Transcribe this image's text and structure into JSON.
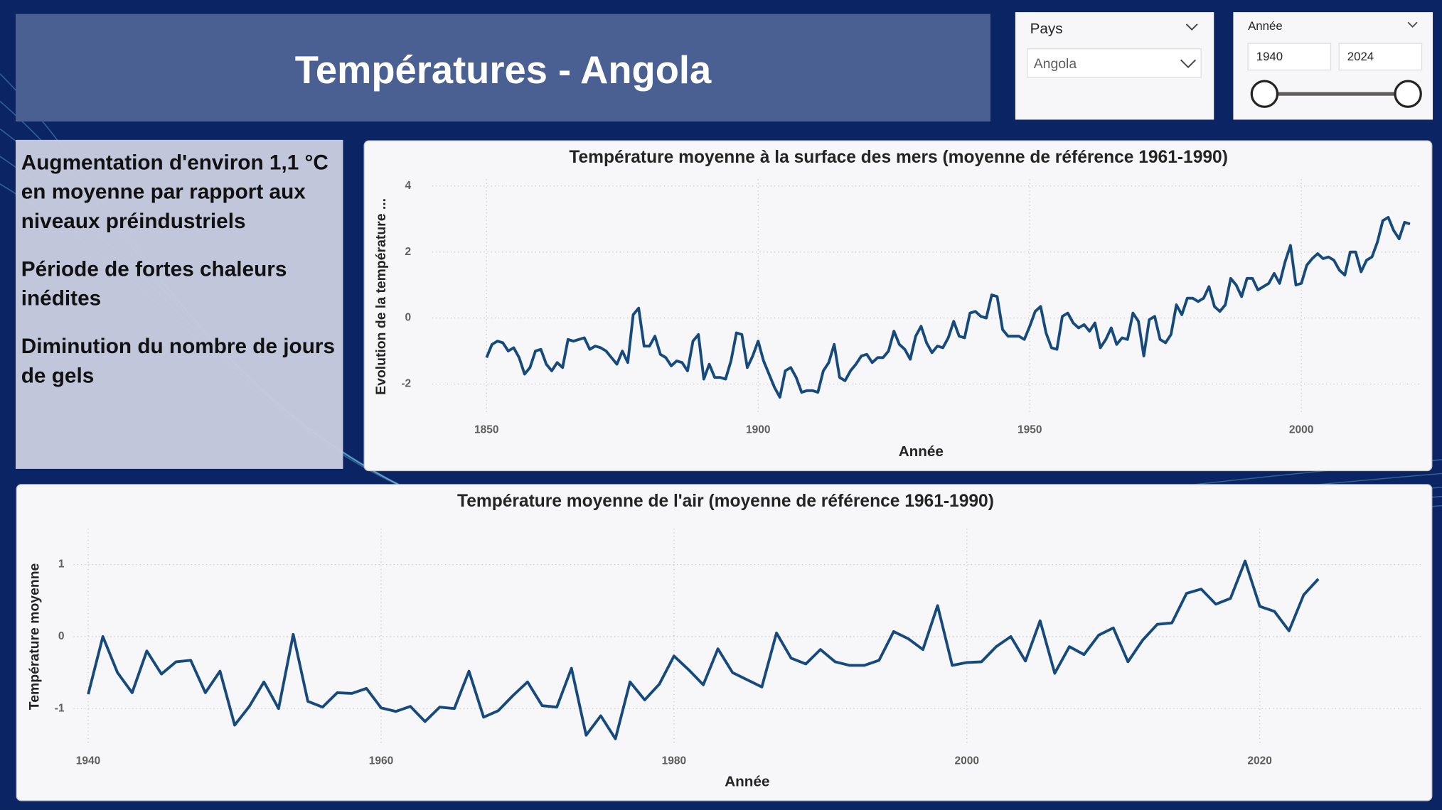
{
  "header": {
    "title": "Températures - Angola"
  },
  "filters": {
    "country": {
      "label": "Pays",
      "value": "Angola"
    },
    "year": {
      "label": "Année",
      "from": "1940",
      "to": "2024"
    }
  },
  "notes": [
    "Augmentation d'environ 1,1 °C en moyenne par rapport aux niveaux préindustriels",
    "Période de fortes chaleurs inédites",
    "Diminution du nombre de jours de gels"
  ],
  "chart_data": [
    {
      "type": "line",
      "title": "Température moyenne à la surface des mers (moyenne de référence 1961-1990)",
      "x_label": "Année",
      "y_label": "Evolution de la température ...",
      "color": "#174a7c",
      "grid": true,
      "xlim": [
        1840,
        2022
      ],
      "xticks": [
        1850,
        1900,
        1950,
        2000
      ],
      "ylim": [
        -2.9,
        4.2
      ],
      "yticks": [
        -2,
        0,
        2,
        4
      ],
      "x": [
        1850,
        1851,
        1852,
        1853,
        1854,
        1855,
        1856,
        1857,
        1858,
        1859,
        1860,
        1861,
        1862,
        1863,
        1864,
        1865,
        1866,
        1867,
        1868,
        1869,
        1870,
        1871,
        1872,
        1873,
        1874,
        1875,
        1876,
        1877,
        1878,
        1879,
        1880,
        1881,
        1882,
        1883,
        1884,
        1885,
        1886,
        1887,
        1888,
        1889,
        1890,
        1891,
        1892,
        1893,
        1894,
        1895,
        1896,
        1897,
        1898,
        1899,
        1900,
        1901,
        1902,
        1903,
        1904,
        1905,
        1906,
        1907,
        1908,
        1909,
        1910,
        1911,
        1912,
        1913,
        1914,
        1915,
        1916,
        1917,
        1918,
        1919,
        1920,
        1921,
        1922,
        1923,
        1924,
        1925,
        1926,
        1927,
        1928,
        1929,
        1930,
        1931,
        1932,
        1933,
        1934,
        1935,
        1936,
        1937,
        1938,
        1939,
        1940,
        1941,
        1942,
        1943,
        1944,
        1945,
        1946,
        1947,
        1948,
        1949,
        1950,
        1951,
        1952,
        1953,
        1954,
        1955,
        1956,
        1957,
        1958,
        1959,
        1960,
        1961,
        1962,
        1963,
        1964,
        1965,
        1966,
        1967,
        1968,
        1969,
        1970,
        1971,
        1972,
        1973,
        1974,
        1975,
        1976,
        1977,
        1978,
        1979,
        1980,
        1981,
        1982,
        1983,
        1984,
        1985,
        1986,
        1987,
        1988,
        1989,
        1990,
        1991,
        1992,
        1993,
        1994,
        1995,
        1996,
        1997,
        1998,
        1999,
        2000,
        2001,
        2002,
        2003,
        2004,
        2005,
        2006,
        2007,
        2008,
        2009,
        2010,
        2011,
        2012,
        2013,
        2014,
        2015,
        2016,
        2017,
        2018,
        2019,
        2020
      ],
      "values": [
        -1.2,
        -0.8,
        -0.7,
        -0.75,
        -1.0,
        -0.9,
        -1.2,
        -1.7,
        -1.5,
        -1.0,
        -0.95,
        -1.4,
        -1.6,
        -1.35,
        -1.5,
        -0.65,
        -0.7,
        -0.65,
        -0.6,
        -0.95,
        -0.85,
        -0.9,
        -1.0,
        -1.2,
        -1.4,
        -1.0,
        -1.35,
        0.1,
        0.3,
        -0.85,
        -0.85,
        -0.55,
        -1.1,
        -1.2,
        -1.45,
        -1.3,
        -1.35,
        -1.6,
        -0.7,
        -0.5,
        -1.85,
        -1.4,
        -1.8,
        -1.8,
        -1.85,
        -1.3,
        -0.45,
        -0.5,
        -1.5,
        -1.15,
        -0.7,
        -1.3,
        -1.7,
        -2.1,
        -2.4,
        -1.6,
        -1.5,
        -1.8,
        -2.25,
        -2.2,
        -2.2,
        -2.25,
        -1.6,
        -1.35,
        -0.8,
        -1.8,
        -1.9,
        -1.6,
        -1.4,
        -1.15,
        -1.1,
        -1.35,
        -1.2,
        -1.2,
        -1.0,
        -0.4,
        -0.8,
        -0.95,
        -1.25,
        -0.55,
        -0.25,
        -0.75,
        -1.05,
        -0.85,
        -0.9,
        -0.6,
        -0.1,
        -0.55,
        -0.6,
        0.15,
        0.2,
        0.05,
        0.0,
        0.7,
        0.65,
        -0.35,
        -0.55,
        -0.55,
        -0.55,
        -0.65,
        -0.25,
        0.2,
        0.35,
        -0.45,
        -0.9,
        -0.95,
        0.05,
        0.15,
        -0.15,
        -0.3,
        -0.2,
        -0.4,
        -0.15,
        -0.9,
        -0.65,
        -0.3,
        -0.8,
        -0.6,
        -0.65,
        0.15,
        -0.1,
        -1.15,
        -0.05,
        0.05,
        -0.65,
        -0.75,
        -0.5,
        0.4,
        0.1,
        0.6,
        0.6,
        0.5,
        0.6,
        0.95,
        0.35,
        0.2,
        0.4,
        1.2,
        1.0,
        0.65,
        1.2,
        1.2,
        0.85,
        0.95,
        1.05,
        1.35,
        1.05,
        1.7,
        2.2,
        1.0,
        1.05,
        1.6,
        1.8,
        1.95,
        1.8,
        1.85,
        1.75,
        1.45,
        1.3,
        2.0,
        2.0,
        1.4,
        1.75,
        1.85,
        2.3,
        2.95,
        3.05,
        2.65,
        2.4,
        2.9,
        2.85
      ]
    },
    {
      "type": "line",
      "title": "Température moyenne de l'air (moyenne de référence 1961-1990)",
      "x_label": "Année",
      "y_label": "Température moyenne",
      "color": "#174a7c",
      "grid": true,
      "xlim": [
        1939,
        2031
      ],
      "xticks": [
        1940,
        1960,
        1980,
        2000,
        2020
      ],
      "ylim": [
        -1.5,
        1.5
      ],
      "yticks": [
        -1,
        0,
        1
      ],
      "x": [
        1940,
        1941,
        1942,
        1943,
        1944,
        1945,
        1946,
        1947,
        1948,
        1949,
        1950,
        1951,
        1952,
        1953,
        1954,
        1955,
        1956,
        1957,
        1958,
        1959,
        1960,
        1961,
        1962,
        1963,
        1964,
        1965,
        1966,
        1967,
        1968,
        1969,
        1970,
        1971,
        1972,
        1973,
        1974,
        1975,
        1976,
        1977,
        1978,
        1979,
        1980,
        1981,
        1982,
        1983,
        1984,
        1985,
        1986,
        1987,
        1988,
        1989,
        1990,
        1991,
        1992,
        1993,
        1994,
        1995,
        1996,
        1997,
        1998,
        1999,
        2000,
        2001,
        2002,
        2003,
        2004,
        2005,
        2006,
        2007,
        2008,
        2009,
        2010,
        2011,
        2012,
        2013,
        2014,
        2015,
        2016,
        2017,
        2018,
        2019,
        2020,
        2021,
        2022,
        2023,
        2024
      ],
      "values": [
        -0.8,
        0.0,
        -0.5,
        -0.78,
        -0.2,
        -0.52,
        -0.35,
        -0.33,
        -0.78,
        -0.48,
        -1.23,
        -0.97,
        -0.63,
        -1.0,
        0.03,
        -0.9,
        -0.98,
        -0.78,
        -0.79,
        -0.72,
        -0.99,
        -1.04,
        -0.97,
        -1.18,
        -0.98,
        -1.0,
        -0.48,
        -1.12,
        -1.03,
        -0.82,
        -0.63,
        -0.96,
        -0.98,
        -0.44,
        -1.37,
        -1.1,
        -1.42,
        -0.63,
        -0.88,
        -0.66,
        -0.27,
        -0.46,
        -0.67,
        -0.17,
        -0.5,
        -0.6,
        -0.7,
        0.05,
        -0.3,
        -0.38,
        -0.18,
        -0.35,
        -0.4,
        -0.4,
        -0.33,
        0.07,
        -0.03,
        -0.18,
        0.43,
        -0.4,
        -0.36,
        -0.35,
        -0.14,
        0.0,
        -0.34,
        0.22,
        -0.51,
        -0.14,
        -0.25,
        0.02,
        0.12,
        -0.35,
        -0.05,
        0.17,
        0.19,
        0.6,
        0.66,
        0.45,
        0.53,
        1.05,
        0.42,
        0.35,
        0.08,
        0.58,
        0.8
      ]
    }
  ]
}
